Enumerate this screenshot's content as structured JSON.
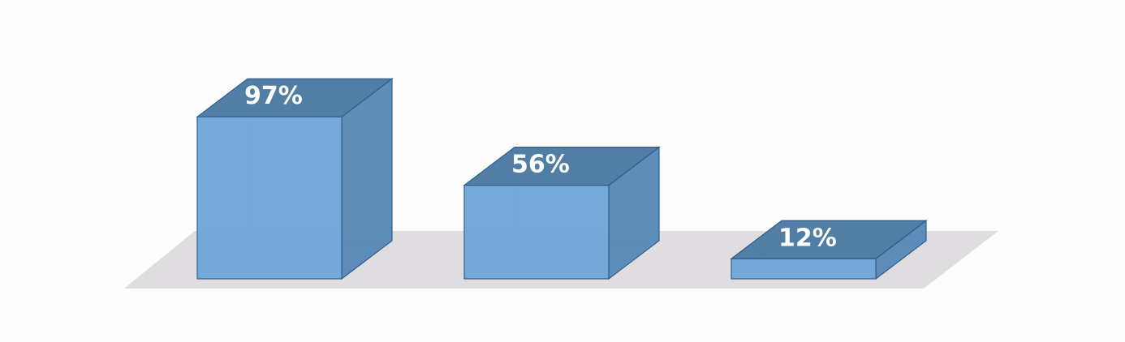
{
  "chart_data": {
    "type": "bar",
    "style": "3d",
    "categories": [
      "",
      "",
      ""
    ],
    "values": [
      97,
      56,
      12
    ],
    "data_labels": [
      "97%",
      "56%",
      "12%"
    ],
    "ylim": [
      0,
      100
    ],
    "grid": false,
    "legend": "none",
    "colors": {
      "front": "#6fa5d8",
      "top": "#4f7aa2",
      "side": "#5a89b7",
      "edge": "#2f5f8e",
      "floor": "#dfdddf",
      "background": "#fdfdfd"
    }
  }
}
